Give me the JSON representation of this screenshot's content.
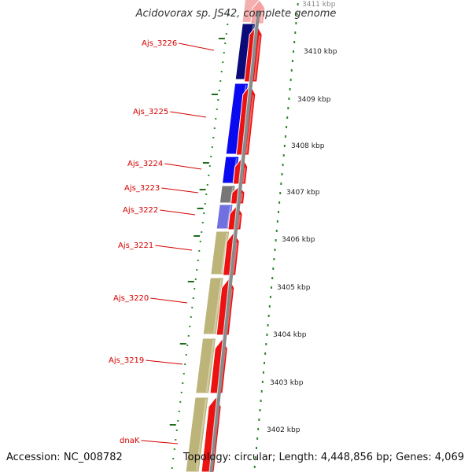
{
  "header": {
    "title": "Acidovorax sp. JS42, complete genome"
  },
  "footer": {
    "accession": "Accession: NC_008782",
    "topology": "Topology: circular; Length: 4,448,856 bp; Genes: 4,069"
  },
  "colors": {
    "gene_label": "#d40000",
    "gene_cds": "#ee1111",
    "backbone": "#8a8a8a",
    "scale_ticks": "#2e8b2e",
    "cog_dark_navy": "#0a0a78",
    "cog_blue": "#0a0af0",
    "cog_grey": "#777777",
    "cog_light_blue": "#7070e0",
    "cog_khaki": "#bdb47a"
  },
  "genes": [
    {
      "name": "Ajs_3226"
    },
    {
      "name": "Ajs_3225"
    },
    {
      "name": "Ajs_3224"
    },
    {
      "name": "Ajs_3223"
    },
    {
      "name": "Ajs_3222"
    },
    {
      "name": "Ajs_3221"
    },
    {
      "name": "Ajs_3220"
    },
    {
      "name": "Ajs_3219"
    },
    {
      "name": "dnaK"
    }
  ],
  "scale_labels": [
    "3411 kbp",
    "3410 kbp",
    "3409 kbp",
    "3408 kbp",
    "3407 kbp",
    "3406 kbp",
    "3405 kbp",
    "3404 kbp",
    "3403 kbp",
    "3402 kbp"
  ]
}
